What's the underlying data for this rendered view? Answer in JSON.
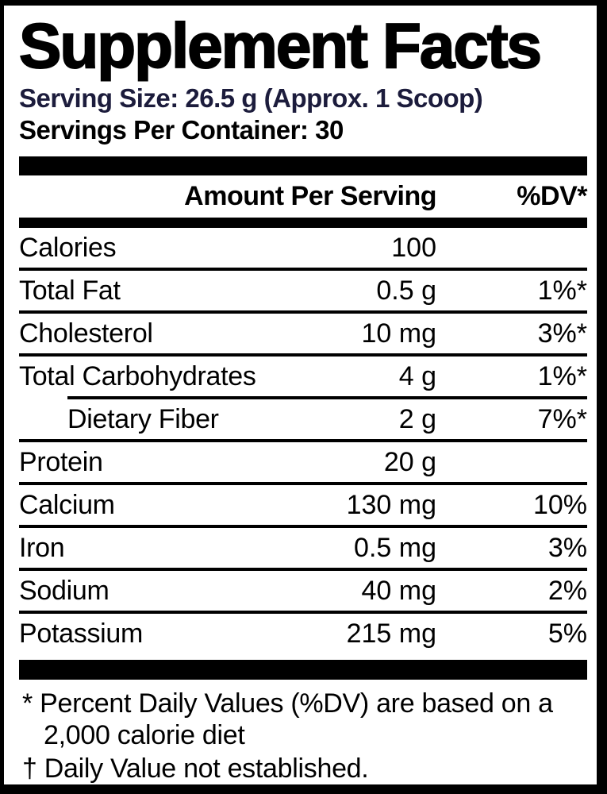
{
  "label": {
    "title": "Supplement Facts",
    "serving_size": "Serving Size: 26.5 g (Approx. 1 Scoop)",
    "servings_per_container": "Servings Per Container: 30",
    "header": {
      "amount_label": "Amount Per Serving",
      "dv_label": "%DV*"
    },
    "rows": [
      {
        "name": "Calories",
        "amount": "100",
        "dv": ""
      },
      {
        "name": "Total Fat",
        "amount": "0.5 g",
        "dv": "1%*"
      },
      {
        "name": "Cholesterol",
        "amount": "10 mg",
        "dv": "3%*"
      },
      {
        "name": "Total Carbohydrates",
        "amount": "4 g",
        "dv": "1%*"
      },
      {
        "name": "Dietary Fiber",
        "amount": "2 g",
        "dv": "7%*"
      },
      {
        "name": "Protein",
        "amount": "20 g",
        "dv": ""
      },
      {
        "name": "Calcium",
        "amount": "130 mg",
        "dv": "10%"
      },
      {
        "name": "Iron",
        "amount": "0.5 mg",
        "dv": "3%"
      },
      {
        "name": "Sodium",
        "amount": "40 mg",
        "dv": "2%"
      },
      {
        "name": "Potassium",
        "amount": "215 mg",
        "dv": "5%"
      }
    ],
    "footnotes": [
      {
        "symbol": "*",
        "text": "Percent Daily Values (%DV) are based on a 2,000 calorie diet"
      },
      {
        "symbol": "†",
        "text": "Daily Value not established."
      }
    ],
    "colors": {
      "frame": "#000000",
      "background": "#ffffff",
      "text": "#000000",
      "serving_size_text": "#1c1c3c"
    }
  }
}
